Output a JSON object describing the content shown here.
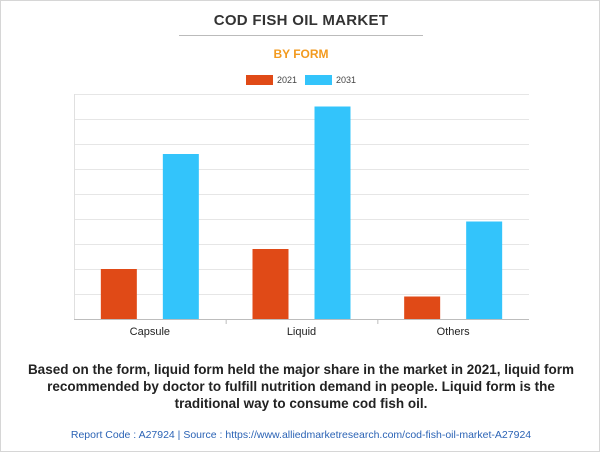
{
  "colors": {
    "accent": "#f29a1f",
    "series_2021": "#e04a17",
    "series_2031": "#33c4fb",
    "source_link": "#2b63b5"
  },
  "chart_data": {
    "type": "bar",
    "title": "COD FISH OIL MARKET",
    "subtitle": "BY FORM",
    "categories": [
      "Capsule",
      "Liquid",
      "Others"
    ],
    "series": [
      {
        "name": "2021",
        "color": "#e04a17",
        "values": [
          2.0,
          2.8,
          0.9
        ]
      },
      {
        "name": "2031",
        "color": "#33c4fb",
        "values": [
          6.6,
          8.5,
          3.9
        ]
      }
    ],
    "ylim": [
      0,
      9
    ],
    "y_ticks": [
      0,
      1,
      2,
      3,
      4,
      5,
      6,
      7,
      8,
      9
    ],
    "grid": true,
    "legend": "top-center",
    "xlabel": "",
    "ylabel": ""
  },
  "description": "Based on the form, liquid form held the major share in the market in 2021, liquid form recommended by doctor to fulfill nutrition demand in people. Liquid form is the traditional way to consume cod fish oil.",
  "source": "Report Code : A27924  |  Source : https://www.alliedmarketresearch.com/cod-fish-oil-market-A27924"
}
